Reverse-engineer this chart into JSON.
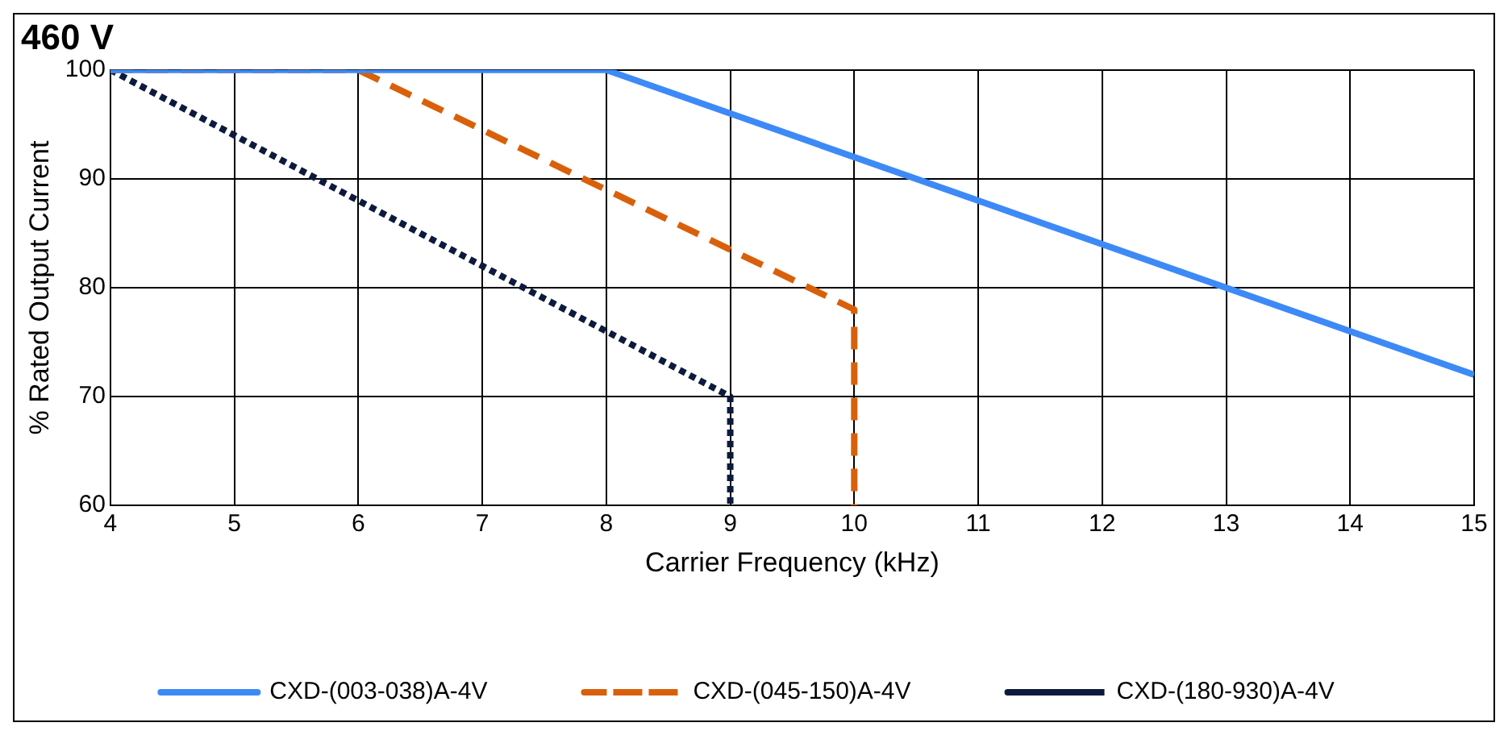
{
  "chart_data": {
    "type": "line",
    "title": "460 V",
    "xlabel": "Carrier Frequency (kHz)",
    "ylabel": "% Rated Output Current",
    "xlim": [
      4,
      15
    ],
    "xticks": [
      4,
      5,
      6,
      7,
      8,
      9,
      10,
      11,
      12,
      13,
      14,
      15
    ],
    "ylim": [
      60,
      100
    ],
    "yticks": [
      60,
      70,
      80,
      90,
      100
    ],
    "grid": true,
    "legend": "bottom",
    "marker": "none",
    "series": [
      {
        "name": "CXD-(003-038)A-4V",
        "color": "#3d8af7",
        "line_style": "solid",
        "x": [
          4,
          8,
          15
        ],
        "values": [
          100,
          100,
          72
        ]
      },
      {
        "name": "CXD-(045-150)A-4V",
        "color": "#d9600b",
        "line_style": "dashed",
        "x": [
          4,
          6,
          10,
          10
        ],
        "values": [
          100,
          100,
          78,
          60
        ]
      },
      {
        "name": "CXD-(180-930)A-4V",
        "color": "#0c1a3d",
        "line_style": "dotted",
        "x": [
          4,
          9,
          9
        ],
        "values": [
          100,
          70,
          60
        ]
      }
    ]
  }
}
